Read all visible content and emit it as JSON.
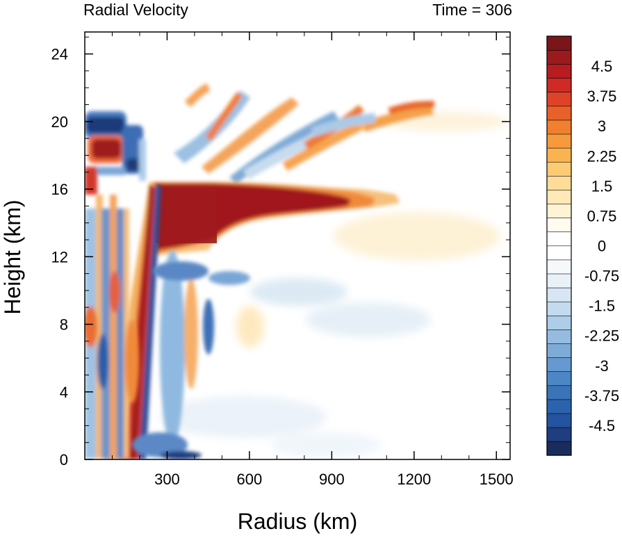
{
  "chart_data": {
    "type": "heatmap",
    "title": "Radial Velocity",
    "subtitle": "Time = 306",
    "xlabel": "Radius (km)",
    "ylabel": "Height (km)",
    "xlim": [
      0,
      1550
    ],
    "ylim": [
      0,
      25.3
    ],
    "xticks": [
      300,
      600,
      900,
      1200,
      1500
    ],
    "yticks": [
      0,
      4,
      8,
      12,
      16,
      20,
      24
    ],
    "grid": false,
    "colorbar": {
      "position": "right",
      "range": [
        -5.25,
        5.25
      ],
      "step": 0.375,
      "labels": [
        "4.5",
        "3.75",
        "3",
        "2.25",
        "1.5",
        "0.75",
        "0",
        "-0.75",
        "-1.5",
        "-2.25",
        "-3",
        "-3.75",
        "-4.5"
      ],
      "label_values": [
        4.5,
        3.75,
        3,
        2.25,
        1.5,
        0.75,
        0,
        -0.75,
        -1.5,
        -2.25,
        -3,
        -3.75,
        -4.5
      ],
      "colors": [
        "#1a2c5e",
        "#1f3d7f",
        "#24539f",
        "#2b63ad",
        "#3a74b8",
        "#4d86c4",
        "#6699cf",
        "#7eaad8",
        "#96bbe0",
        "#aecde8",
        "#c4dbef",
        "#d8e6f4",
        "#e8f0f8",
        "#f5f9fc",
        "#ffffff",
        "#ffffff",
        "#fffbef",
        "#fff3d6",
        "#ffe9b8",
        "#ffdd98",
        "#fdcb74",
        "#fbb352",
        "#f69a3c",
        "#f07f30",
        "#e86128",
        "#df4327",
        "#cf2a26",
        "#b71c21",
        "#9a1a1e",
        "#7c1519"
      ]
    },
    "features": [
      {
        "name": "outflow jet",
        "r": [
          230,
          900
        ],
        "z": [
          12,
          16.5
        ],
        "value": 5.5
      },
      {
        "name": "eyewall updraft slant",
        "r": [
          140,
          235
        ],
        "z": [
          0,
          16.5
        ],
        "value": 5.5
      },
      {
        "name": "upper outflow band",
        "r": [
          480,
          950
        ],
        "z": [
          17,
          21
        ],
        "value": 2.5
      },
      {
        "name": "inner core inflow",
        "r": [
          0,
          120
        ],
        "z": [
          19,
          21
        ],
        "value": -5.5
      }
    ]
  }
}
